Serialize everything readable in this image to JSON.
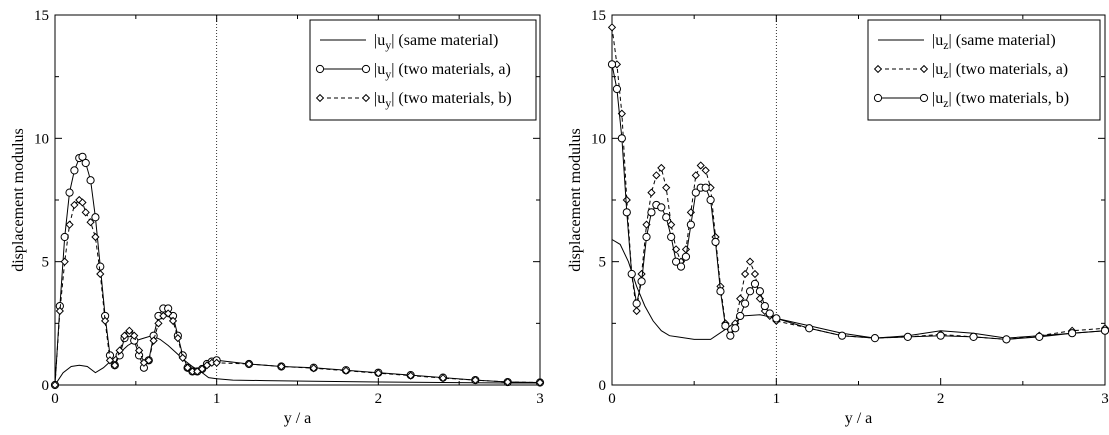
{
  "chart_data": [
    {
      "type": "line",
      "title": "",
      "xlabel": "y / a",
      "ylabel": "displacement modulus",
      "xlim": [
        0,
        3
      ],
      "ylim": [
        0,
        15
      ],
      "xticks": [
        0,
        1,
        2,
        3
      ],
      "yticks": [
        0,
        5,
        10,
        15
      ],
      "grid": false,
      "vline_x": 1,
      "legend_position": "top-right",
      "series": [
        {
          "name": "|u_y| (same material)",
          "label_main": "|u",
          "label_sub": "y",
          "label_rest": "| (same material)",
          "style": "solid",
          "marker": "none",
          "x": [
            0,
            0.05,
            0.1,
            0.15,
            0.2,
            0.25,
            0.3,
            0.35,
            0.4,
            0.45,
            0.5,
            0.55,
            0.6,
            0.65,
            0.7,
            0.75,
            0.8,
            0.85,
            0.9,
            0.95,
            1.0,
            1.1,
            1.3,
            1.6,
            2.0,
            2.4,
            2.8,
            3.0
          ],
          "values": [
            0,
            0.5,
            0.75,
            0.8,
            0.75,
            0.5,
            0.7,
            1.0,
            1.3,
            1.6,
            1.8,
            1.9,
            2.0,
            1.85,
            1.6,
            1.3,
            1.0,
            0.75,
            0.55,
            0.3,
            0.25,
            0.2,
            0.18,
            0.15,
            0.12,
            0.1,
            0.08,
            0.08
          ]
        },
        {
          "name": "|u_y| (two materials, a)",
          "label_main": "|u",
          "label_sub": "y",
          "label_rest": "| (two materials, a)",
          "style": "solid",
          "marker": "circle",
          "x": [
            0,
            0.03,
            0.06,
            0.09,
            0.12,
            0.15,
            0.17,
            0.19,
            0.22,
            0.25,
            0.28,
            0.31,
            0.34,
            0.37,
            0.4,
            0.43,
            0.46,
            0.49,
            0.52,
            0.55,
            0.58,
            0.61,
            0.64,
            0.67,
            0.7,
            0.73,
            0.76,
            0.79,
            0.82,
            0.85,
            0.88,
            0.91,
            0.94,
            0.97,
            1.0,
            1.2,
            1.4,
            1.6,
            1.8,
            2.0,
            2.2,
            2.4,
            2.6,
            2.8,
            3.0
          ],
          "values": [
            0,
            3.2,
            6.0,
            7.8,
            8.7,
            9.2,
            9.25,
            9.0,
            8.3,
            6.8,
            4.8,
            2.8,
            1.2,
            0.8,
            1.2,
            1.9,
            2.1,
            1.8,
            1.2,
            0.7,
            1.0,
            2.0,
            2.8,
            3.1,
            3.1,
            2.8,
            2.0,
            1.2,
            0.7,
            0.55,
            0.55,
            0.65,
            0.85,
            0.95,
            1.0,
            0.85,
            0.75,
            0.7,
            0.6,
            0.5,
            0.4,
            0.3,
            0.2,
            0.12,
            0.1
          ]
        },
        {
          "name": "|u_y| (two materials, b)",
          "label_main": "|u",
          "label_sub": "y",
          "label_rest": "| (two materials, b)",
          "style": "dashed",
          "marker": "diamond",
          "x": [
            0,
            0.03,
            0.06,
            0.09,
            0.12,
            0.15,
            0.17,
            0.19,
            0.22,
            0.25,
            0.28,
            0.31,
            0.34,
            0.37,
            0.4,
            0.43,
            0.46,
            0.49,
            0.52,
            0.55,
            0.58,
            0.61,
            0.64,
            0.67,
            0.7,
            0.73,
            0.76,
            0.79,
            0.82,
            0.85,
            0.88,
            0.91,
            0.94,
            0.97,
            1.0,
            1.2,
            1.4,
            1.6,
            1.8,
            2.0,
            2.2,
            2.4,
            2.6,
            2.8,
            3.0
          ],
          "values": [
            0,
            3.0,
            5.0,
            6.5,
            7.3,
            7.5,
            7.4,
            7.0,
            6.6,
            6.0,
            4.5,
            2.6,
            1.0,
            0.8,
            1.4,
            2.0,
            2.2,
            2.0,
            1.4,
            0.9,
            1.0,
            1.8,
            2.5,
            2.8,
            2.9,
            2.6,
            1.9,
            1.1,
            0.7,
            0.55,
            0.55,
            0.65,
            0.8,
            0.9,
            0.9,
            0.85,
            0.75,
            0.68,
            0.58,
            0.48,
            0.38,
            0.28,
            0.2,
            0.12,
            0.1
          ]
        }
      ]
    },
    {
      "type": "line",
      "title": "",
      "xlabel": "y / a",
      "ylabel": "displacement modulus",
      "xlim": [
        0,
        3
      ],
      "ylim": [
        0,
        15
      ],
      "xticks": [
        0,
        1,
        2,
        3
      ],
      "yticks": [
        0,
        5,
        10,
        15
      ],
      "grid": false,
      "vline_x": 1,
      "legend_position": "top-right",
      "series": [
        {
          "name": "|u_z| (same material)",
          "label_main": "|u",
          "label_sub": "z",
          "label_rest": "| (same material)",
          "style": "solid",
          "marker": "none",
          "x": [
            0,
            0.05,
            0.1,
            0.15,
            0.2,
            0.25,
            0.3,
            0.35,
            0.4,
            0.5,
            0.6,
            0.7,
            0.8,
            0.9,
            1.0,
            1.2,
            1.4,
            1.6,
            1.8,
            2.0,
            2.2,
            2.4,
            2.6,
            2.8,
            3.0
          ],
          "values": [
            5.9,
            5.7,
            5.0,
            4.0,
            3.2,
            2.6,
            2.2,
            2.0,
            1.95,
            1.85,
            1.85,
            2.3,
            2.8,
            2.85,
            2.7,
            2.4,
            2.1,
            1.9,
            2.0,
            2.2,
            2.1,
            1.9,
            2.0,
            2.1,
            2.2
          ]
        },
        {
          "name": "|u_z| (two materials, a)",
          "label_main": "|u",
          "label_sub": "z",
          "label_rest": "| (two materials, a)",
          "style": "dashed",
          "marker": "diamond",
          "x": [
            0,
            0.03,
            0.06,
            0.09,
            0.12,
            0.15,
            0.18,
            0.21,
            0.24,
            0.27,
            0.3,
            0.33,
            0.36,
            0.39,
            0.42,
            0.45,
            0.48,
            0.51,
            0.54,
            0.57,
            0.6,
            0.63,
            0.66,
            0.69,
            0.72,
            0.75,
            0.78,
            0.81,
            0.84,
            0.87,
            0.9,
            0.93,
            0.96,
            1.0,
            1.2,
            1.4,
            1.6,
            1.8,
            2.0,
            2.2,
            2.4,
            2.6,
            2.8,
            3.0
          ],
          "values": [
            14.5,
            13.0,
            11.0,
            7.5,
            4.5,
            3.0,
            4.5,
            6.5,
            7.8,
            8.5,
            8.8,
            8.0,
            6.5,
            5.5,
            5.0,
            5.5,
            7.0,
            8.5,
            8.9,
            8.7,
            8.0,
            6.0,
            4.0,
            2.5,
            2.0,
            2.5,
            3.5,
            4.5,
            5.0,
            4.5,
            3.5,
            3.0,
            2.8,
            2.6,
            2.3,
            2.0,
            1.9,
            1.95,
            2.05,
            1.95,
            1.85,
            2.0,
            2.2,
            2.3
          ]
        },
        {
          "name": "|u_z| (two materials, b)",
          "label_main": "|u",
          "label_sub": "z",
          "label_rest": "| (two materials, b)",
          "style": "solid",
          "marker": "circle",
          "x": [
            0,
            0.03,
            0.06,
            0.09,
            0.12,
            0.15,
            0.18,
            0.21,
            0.24,
            0.27,
            0.3,
            0.33,
            0.36,
            0.39,
            0.42,
            0.45,
            0.48,
            0.51,
            0.54,
            0.57,
            0.6,
            0.63,
            0.66,
            0.69,
            0.72,
            0.75,
            0.78,
            0.81,
            0.84,
            0.87,
            0.9,
            0.93,
            0.96,
            1.0,
            1.2,
            1.4,
            1.6,
            1.8,
            2.0,
            2.2,
            2.4,
            2.6,
            2.8,
            3.0
          ],
          "values": [
            13.0,
            12.0,
            10.0,
            7.0,
            4.5,
            3.3,
            4.2,
            6.0,
            7.0,
            7.3,
            7.2,
            6.8,
            6.0,
            5.0,
            4.8,
            5.2,
            6.5,
            7.8,
            8.0,
            8.0,
            7.5,
            5.8,
            3.8,
            2.4,
            2.0,
            2.3,
            2.8,
            3.3,
            3.8,
            4.1,
            3.8,
            3.2,
            2.9,
            2.7,
            2.3,
            2.0,
            1.9,
            1.95,
            2.0,
            1.95,
            1.85,
            1.95,
            2.1,
            2.2
          ]
        }
      ]
    }
  ]
}
